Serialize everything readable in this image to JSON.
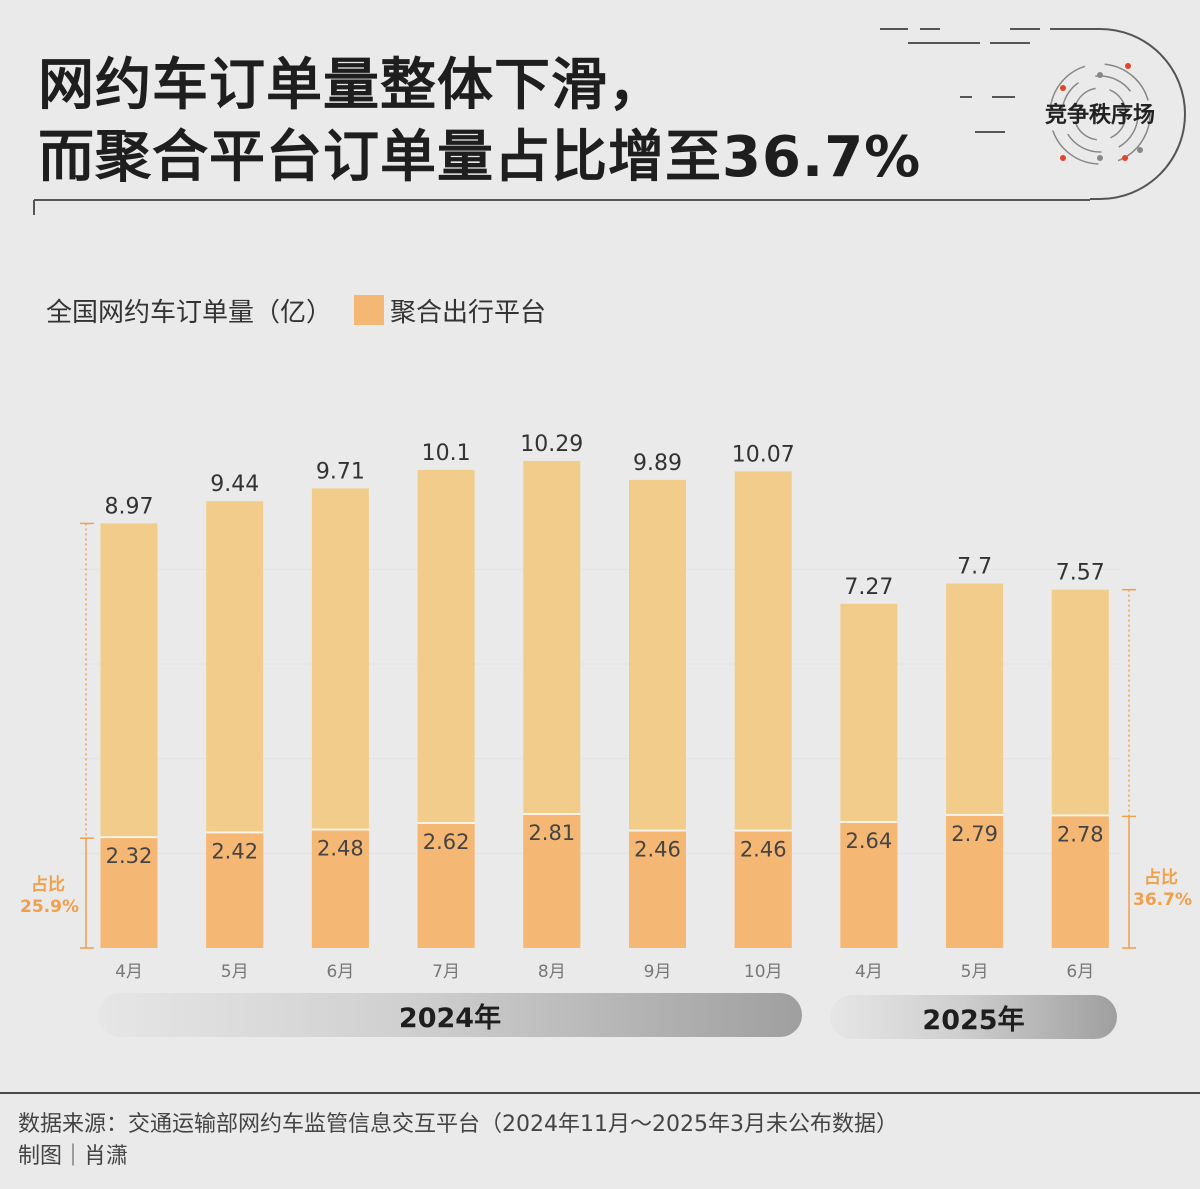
{
  "title": {
    "line1": "网约车订单量整体下滑，",
    "line2": "而聚合平台订单量占比增至36.7%"
  },
  "logo": {
    "text": "竞争秩序场"
  },
  "legend": {
    "main": "全国网约车订单量（亿）",
    "sub": "聚合出行平台"
  },
  "colors": {
    "total": "#f2cc8a",
    "aggregator": "#f5b774",
    "accent": "#f0a04b",
    "background": "#eaeaea"
  },
  "chart_data": {
    "type": "bar",
    "categories": [
      "4月",
      "5月",
      "6月",
      "7月",
      "8月",
      "9月",
      "10月",
      "4月",
      "5月",
      "6月"
    ],
    "series": [
      {
        "name": "全国网约车订单量（亿）",
        "values": [
          8.97,
          9.44,
          9.71,
          10.1,
          10.29,
          9.89,
          10.07,
          7.27,
          7.7,
          7.57
        ]
      },
      {
        "name": "聚合出行平台",
        "values": [
          2.32,
          2.42,
          2.48,
          2.62,
          2.81,
          2.46,
          2.46,
          2.64,
          2.79,
          2.78
        ]
      }
    ],
    "labels_total": [
      "8.97",
      "9.44",
      "9.71",
      "10.1",
      "10.29",
      "9.89",
      "10.07",
      "7.27",
      "7.7",
      "7.57"
    ],
    "labels_agg": [
      "2.32",
      "2.42",
      "2.48",
      "2.62",
      "2.81",
      "2.46",
      "2.46",
      "2.64",
      "2.79",
      "2.78"
    ],
    "groups": [
      {
        "label": "2024年"
      },
      {
        "label": "2025年"
      }
    ],
    "ylim": [
      0,
      12
    ],
    "annotations": [
      {
        "label": "占比",
        "value": "25.9%"
      },
      {
        "label": "占比",
        "value": "36.7%"
      }
    ],
    "grid": true
  },
  "footer": {
    "source": "数据来源：交通运输部网约车监管信息交互平台（2024年11月～2025年3月未公布数据）",
    "credit": "制图｜肖潇"
  }
}
